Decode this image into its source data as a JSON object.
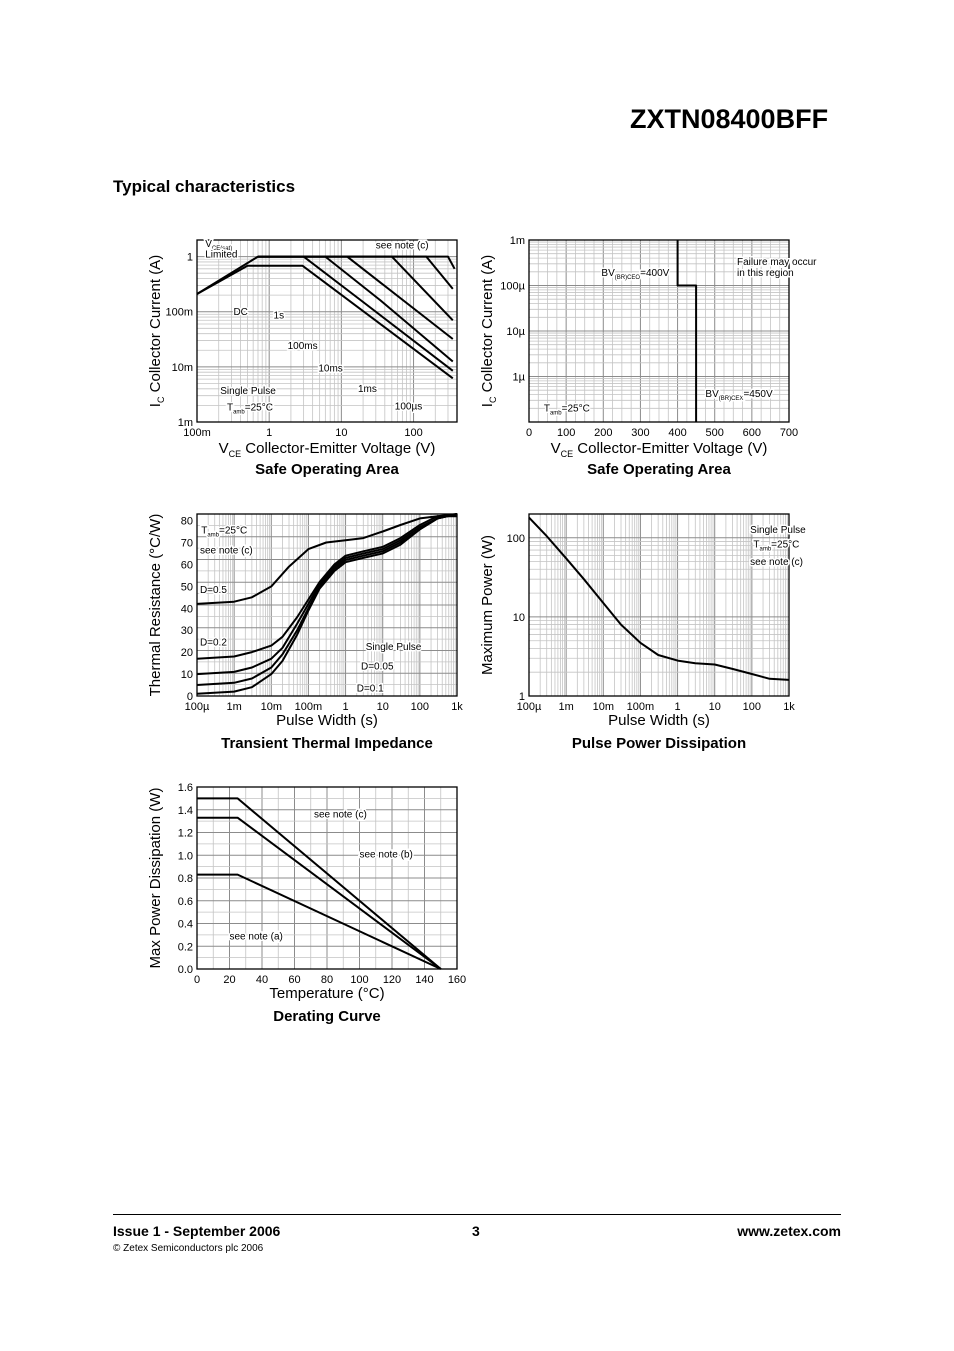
{
  "header": {
    "part_number": "ZXTN08400BFF",
    "section_title": "Typical characteristics"
  },
  "footer": {
    "issue": "Issue 1 - September 2006",
    "page": "3",
    "website": "www.zetex.com",
    "copyright": "© Zetex Semiconductors plc 2006"
  },
  "colors": {
    "ink": "#000000",
    "grid_major": "#8c8c8c",
    "grid_minor": "#c4c4c4"
  },
  "chart_data": [
    {
      "id": "soa-log",
      "type": "line",
      "title": "Safe Operating Area",
      "xlabel": "V",
      "xlabel_sub": "CE",
      "xlabel_rest": " Collector-Emitter Voltage (V)",
      "ylabel": "I",
      "ylabel_sub": "C",
      "ylabel_rest": " Collector Current (A)",
      "xscale": "log",
      "yscale": "log",
      "xlim": [
        0.1,
        400
      ],
      "ylim": [
        0.001,
        2
      ],
      "grid": true,
      "xticks": [
        {
          "v": 0.1,
          "t": "100m"
        },
        {
          "v": 1,
          "t": "1"
        },
        {
          "v": 10,
          "t": "10"
        },
        {
          "v": 100,
          "t": "100"
        }
      ],
      "yticks": [
        {
          "v": 0.001,
          "t": "1m"
        },
        {
          "v": 0.01,
          "t": "10m"
        },
        {
          "v": 0.1,
          "t": "100m"
        },
        {
          "v": 1,
          "t": "1"
        }
      ],
      "series": [
        {
          "x": [
            0.1,
            0.7,
            3.0,
            20,
            350
          ],
          "y": [
            0.21,
            1,
            1,
            0.15,
            0.0085
          ]
        },
        {
          "x": [
            0.1,
            0.5,
            2.9,
            350
          ],
          "y": [
            0.21,
            0.68,
            0.68,
            0.0062
          ]
        },
        {
          "x": [
            0.7,
            6,
            35,
            350
          ],
          "y": [
            1,
            1,
            0.16,
            0.0125
          ]
        },
        {
          "x": [
            0.7,
            12,
            350
          ],
          "y": [
            1,
            1,
            0.032
          ]
        },
        {
          "x": [
            0.7,
            50,
            350
          ],
          "y": [
            1,
            1,
            0.07
          ]
        },
        {
          "x": [
            0.7,
            150,
            350
          ],
          "y": [
            1,
            1,
            0.26
          ]
        },
        {
          "x": [
            0.7,
            300,
            370
          ],
          "y": [
            1,
            1,
            0.6
          ]
        }
      ],
      "labels": [
        {
          "t": "see note (c)",
          "x": 30,
          "y": 1.4
        },
        {
          "t": "V",
          "sub": "CE(sat)",
          "x": 0.13,
          "y": 1.5
        },
        {
          "t": "Limited",
          "x": 0.13,
          "y": 0.97
        },
        {
          "t": "DC",
          "x": 0.32,
          "y": 0.088
        },
        {
          "t": "1s",
          "x": 1.15,
          "y": 0.076
        },
        {
          "t": "100ms",
          "x": 1.8,
          "y": 0.021
        },
        {
          "t": "10ms",
          "x": 4.8,
          "y": 0.0082
        },
        {
          "t": "1ms",
          "x": 17,
          "y": 0.0035
        },
        {
          "t": "100µs",
          "x": 55,
          "y": 0.0017
        },
        {
          "t": "Single Pulse",
          "x": 0.21,
          "y": 0.0032
        },
        {
          "t": "T",
          "sub": "amb",
          "rest": "=25°C",
          "x": 0.26,
          "y": 0.0016
        }
      ]
    },
    {
      "id": "soa-lin",
      "type": "line",
      "title": "Safe Operating Area",
      "xlabel": "V",
      "xlabel_sub": "CE",
      "xlabel_rest": " Collector-Emitter Voltage (V)",
      "ylabel": "I",
      "ylabel_sub": "C",
      "ylabel_rest": " Collector Current (A)",
      "xscale": "linear",
      "yscale": "log",
      "xlim": [
        0,
        700
      ],
      "ylim": [
        1e-07,
        0.001
      ],
      "grid": true,
      "xticks": [
        {
          "v": 0,
          "t": "0"
        },
        {
          "v": 100,
          "t": "100"
        },
        {
          "v": 200,
          "t": "200"
        },
        {
          "v": 300,
          "t": "300"
        },
        {
          "v": 400,
          "t": "400"
        },
        {
          "v": 500,
          "t": "500"
        },
        {
          "v": 600,
          "t": "600"
        },
        {
          "v": 700,
          "t": "700"
        }
      ],
      "yticks": [
        {
          "v": 1e-06,
          "t": "1µ"
        },
        {
          "v": 1e-05,
          "t": "10µ"
        },
        {
          "v": 0.0001,
          "t": "100µ"
        },
        {
          "v": 0.001,
          "t": "1m"
        }
      ],
      "series": [
        {
          "x": [
            400,
            400,
            450,
            450
          ],
          "y": [
            0.001,
            0.0001,
            0.0001,
            1e-07
          ]
        }
      ],
      "labels": [
        {
          "t": "Failure may occur",
          "x": 560,
          "y": 0.00028
        },
        {
          "t": "in this region",
          "x": 560,
          "y": 0.00016
        },
        {
          "t": "BV",
          "sub": "(BR)CEO",
          "rest": "=400V",
          "x": 195,
          "y": 0.00016
        },
        {
          "t": "BV",
          "sub": "(BR)CEX",
          "rest": "=450V",
          "x": 475,
          "y": 3.5e-07
        },
        {
          "t": "T",
          "sub": "amb",
          "rest": "=25°C",
          "x": 40,
          "y": 1.7e-07
        }
      ]
    },
    {
      "id": "thermal",
      "type": "line",
      "title": "Transient Thermal Impedance",
      "xlabel": "Pulse Width (s)",
      "ylabel": "Thermal Resistance (°C/W)",
      "xscale": "log",
      "yscale": "linear",
      "xlim": [
        0.0001,
        1000
      ],
      "ylim": [
        0,
        83
      ],
      "grid": true,
      "xticks": [
        {
          "v": 0.0001,
          "t": "100µ"
        },
        {
          "v": 0.001,
          "t": "1m"
        },
        {
          "v": 0.01,
          "t": "10m"
        },
        {
          "v": 0.1,
          "t": "100m"
        },
        {
          "v": 1,
          "t": "1"
        },
        {
          "v": 10,
          "t": "10"
        },
        {
          "v": 100,
          "t": "100"
        },
        {
          "v": 1000,
          "t": "1k"
        }
      ],
      "yticks": [
        {
          "v": 0,
          "t": "0"
        },
        {
          "v": 10,
          "t": "10"
        },
        {
          "v": 20,
          "t": "20"
        },
        {
          "v": 30,
          "t": "30"
        },
        {
          "v": 40,
          "t": "40"
        },
        {
          "v": 50,
          "t": "50"
        },
        {
          "v": 60,
          "t": "60"
        },
        {
          "v": 70,
          "t": "70"
        },
        {
          "v": 80,
          "t": "80"
        }
      ],
      "series": [
        {
          "x": [
            0.0001,
            0.001,
            0.003,
            0.01,
            0.03,
            0.1,
            0.3,
            1,
            3,
            10,
            30,
            100,
            300,
            1000
          ],
          "y": [
            42,
            43,
            45,
            50,
            59,
            67,
            70,
            71,
            72,
            75,
            78,
            81,
            82,
            82
          ]
        },
        {
          "x": [
            0.0001,
            0.001,
            0.003,
            0.01,
            0.02,
            0.05,
            0.1,
            0.2,
            0.5,
            1,
            3,
            10,
            30,
            100,
            300,
            1000
          ],
          "y": [
            17,
            18,
            20,
            23,
            27,
            36,
            44,
            52,
            60,
            64,
            66,
            68,
            72,
            78,
            82,
            83
          ]
        },
        {
          "x": [
            0.0001,
            0.001,
            0.003,
            0.01,
            0.02,
            0.05,
            0.1,
            0.2,
            0.5,
            1,
            3,
            10,
            30,
            100,
            300,
            1000
          ],
          "y": [
            10,
            11,
            13,
            17,
            22,
            33,
            42,
            51,
            59,
            63,
            65,
            67,
            71,
            77,
            81,
            83
          ]
        },
        {
          "x": [
            0.0001,
            0.001,
            0.003,
            0.01,
            0.02,
            0.05,
            0.1,
            0.2,
            0.5,
            1,
            3,
            10,
            30,
            100,
            300,
            1000
          ],
          "y": [
            5,
            6,
            8,
            13,
            19,
            30,
            40,
            50,
            58,
            62,
            64,
            66,
            70,
            76,
            81,
            83
          ]
        },
        {
          "x": [
            0.0001,
            0.001,
            0.003,
            0.01,
            0.02,
            0.05,
            0.1,
            0.2,
            0.5,
            1,
            3,
            10,
            30,
            100,
            300,
            1000
          ],
          "y": [
            1,
            2,
            4,
            10,
            16,
            28,
            39,
            49,
            57,
            61,
            63,
            65,
            69,
            76,
            81,
            83
          ]
        }
      ],
      "labels": [
        {
          "t": "T",
          "sub": "amb",
          "rest": "=25°C",
          "x": 0.00013,
          "y": 74
        },
        {
          "t": "see note (c)",
          "x": 0.00012,
          "y": 65
        },
        {
          "t": "D=0.5",
          "x": 0.00012,
          "y": 47
        },
        {
          "t": "D=0.2",
          "x": 0.00012,
          "y": 23
        },
        {
          "t": "Single Pulse",
          "x": 3.5,
          "y": 21
        },
        {
          "t": "D=0.05",
          "x": 2.6,
          "y": 12
        },
        {
          "t": "D=0.1",
          "x": 2.0,
          "y": 2
        }
      ]
    },
    {
      "id": "pulse",
      "type": "line",
      "title": "Pulse Power Dissipation",
      "xlabel": "Pulse Width (s)",
      "ylabel": "Maximum Power (W)",
      "xscale": "log",
      "yscale": "log",
      "xlim": [
        0.0001,
        1000
      ],
      "ylim": [
        1,
        200
      ],
      "grid": true,
      "xticks": [
        {
          "v": 0.0001,
          "t": "100µ"
        },
        {
          "v": 0.001,
          "t": "1m"
        },
        {
          "v": 0.01,
          "t": "10m"
        },
        {
          "v": 0.1,
          "t": "100m"
        },
        {
          "v": 1,
          "t": "1"
        },
        {
          "v": 10,
          "t": "10"
        },
        {
          "v": 100,
          "t": "100"
        },
        {
          "v": 1000,
          "t": "1k"
        }
      ],
      "yticks": [
        {
          "v": 1,
          "t": "1"
        },
        {
          "v": 10,
          "t": "10"
        },
        {
          "v": 100,
          "t": "100"
        }
      ],
      "series": [
        {
          "x": [
            0.0001,
            0.0003,
            0.001,
            0.003,
            0.01,
            0.03,
            0.1,
            0.3,
            1,
            3,
            10,
            30,
            100,
            300,
            1000
          ],
          "y": [
            180,
            105,
            55,
            30,
            15,
            8,
            4.7,
            3.3,
            2.8,
            2.6,
            2.5,
            2.2,
            1.9,
            1.65,
            1.6
          ]
        }
      ],
      "labels": [
        {
          "t": "Single Pulse",
          "x": 90,
          "y": 115
        },
        {
          "t": "T",
          "sub": "amb",
          "rest": "=25°C",
          "x": 110,
          "y": 75
        },
        {
          "t": "see note (c)",
          "x": 90,
          "y": 45
        }
      ]
    },
    {
      "id": "derating",
      "type": "line",
      "title": "Derating Curve",
      "xlabel": "Temperature (°C)",
      "ylabel": "Max Power Dissipation (W)",
      "xscale": "linear",
      "yscale": "linear",
      "xlim": [
        0,
        160
      ],
      "ylim": [
        0,
        1.6
      ],
      "grid": true,
      "xticks": [
        {
          "v": 0,
          "t": "0"
        },
        {
          "v": 20,
          "t": "20"
        },
        {
          "v": 40,
          "t": "40"
        },
        {
          "v": 60,
          "t": "60"
        },
        {
          "v": 80,
          "t": "80"
        },
        {
          "v": 100,
          "t": "100"
        },
        {
          "v": 120,
          "t": "120"
        },
        {
          "v": 140,
          "t": "140"
        },
        {
          "v": 160,
          "t": "160"
        }
      ],
      "yticks": [
        {
          "v": 0,
          "t": "0.0"
        },
        {
          "v": 0.2,
          "t": "0.2"
        },
        {
          "v": 0.4,
          "t": "0.4"
        },
        {
          "v": 0.6,
          "t": "0.6"
        },
        {
          "v": 0.8,
          "t": "0.8"
        },
        {
          "v": 1.0,
          "t": "1.0"
        },
        {
          "v": 1.2,
          "t": "1.2"
        },
        {
          "v": 1.4,
          "t": "1.4"
        },
        {
          "v": 1.6,
          "t": "1.6"
        }
      ],
      "series": [
        {
          "x": [
            0,
            25,
            150
          ],
          "y": [
            1.5,
            1.5,
            0
          ]
        },
        {
          "x": [
            0,
            25,
            150
          ],
          "y": [
            1.33,
            1.33,
            0
          ]
        },
        {
          "x": [
            0,
            25,
            150
          ],
          "y": [
            0.83,
            0.83,
            0
          ]
        }
      ],
      "labels": [
        {
          "t": "see note (c)",
          "x": 72,
          "y": 1.33
        },
        {
          "t": "see note (b)",
          "x": 100,
          "y": 0.98
        },
        {
          "t": "see note (a)",
          "x": 20,
          "y": 0.26
        }
      ]
    }
  ]
}
